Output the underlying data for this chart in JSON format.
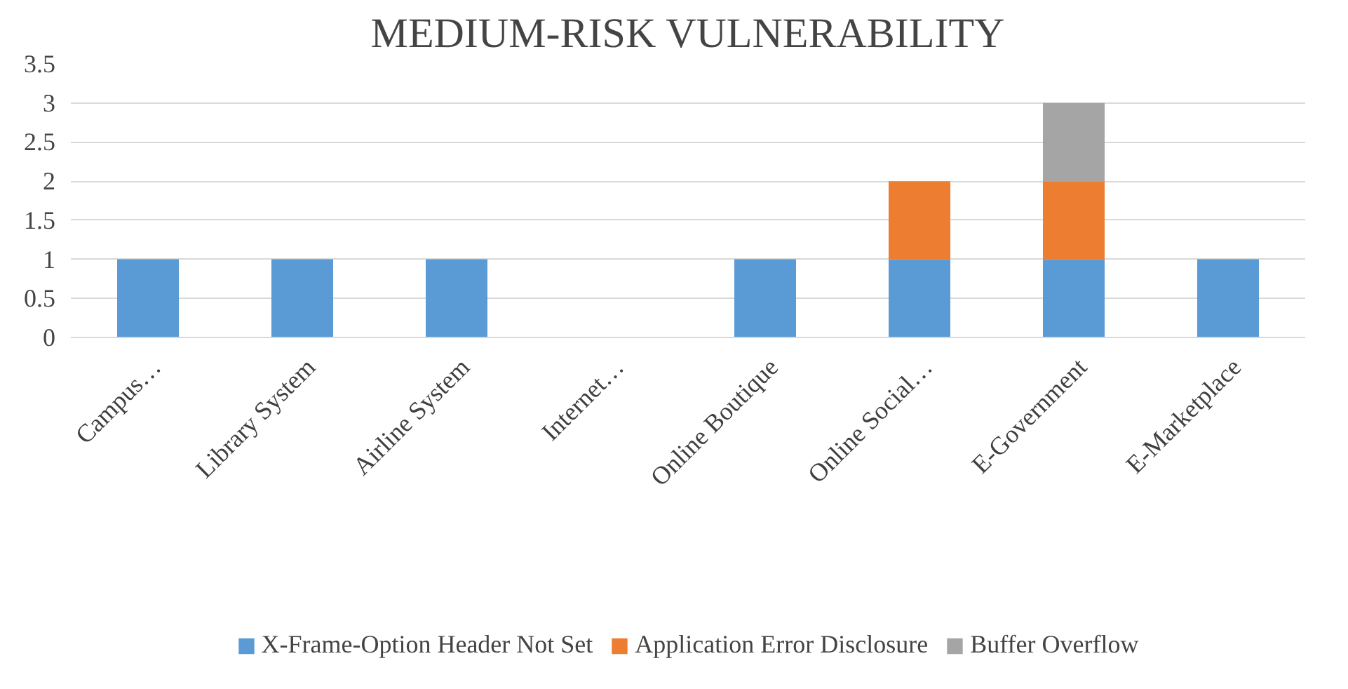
{
  "chart_data": {
    "type": "bar",
    "title": "MEDIUM-RISK VULNERABILITY",
    "stacked": true,
    "categories": [
      "Campus…",
      "Library System",
      "Airline System",
      "Internet…",
      "Online Boutique",
      "Online Social…",
      "E-Government",
      "E-Marketplace"
    ],
    "series": [
      {
        "name": "X-Frame-Option Header Not Set",
        "color": "#5b9bd5",
        "values": [
          1,
          1,
          1,
          0,
          1,
          1,
          1,
          1
        ]
      },
      {
        "name": "Application Error Disclosure",
        "color": "#ed7d31",
        "values": [
          0,
          0,
          0,
          0,
          0,
          1,
          1,
          0
        ]
      },
      {
        "name": "Buffer Overflow",
        "color": "#a5a5a5",
        "values": [
          0,
          0,
          0,
          0,
          0,
          0,
          1,
          0
        ]
      }
    ],
    "ylim": [
      0,
      3.5
    ],
    "yticks": [
      0,
      0.5,
      1,
      1.5,
      2,
      2.5,
      3,
      3.5
    ],
    "grid": "y",
    "legend": "bottom"
  }
}
